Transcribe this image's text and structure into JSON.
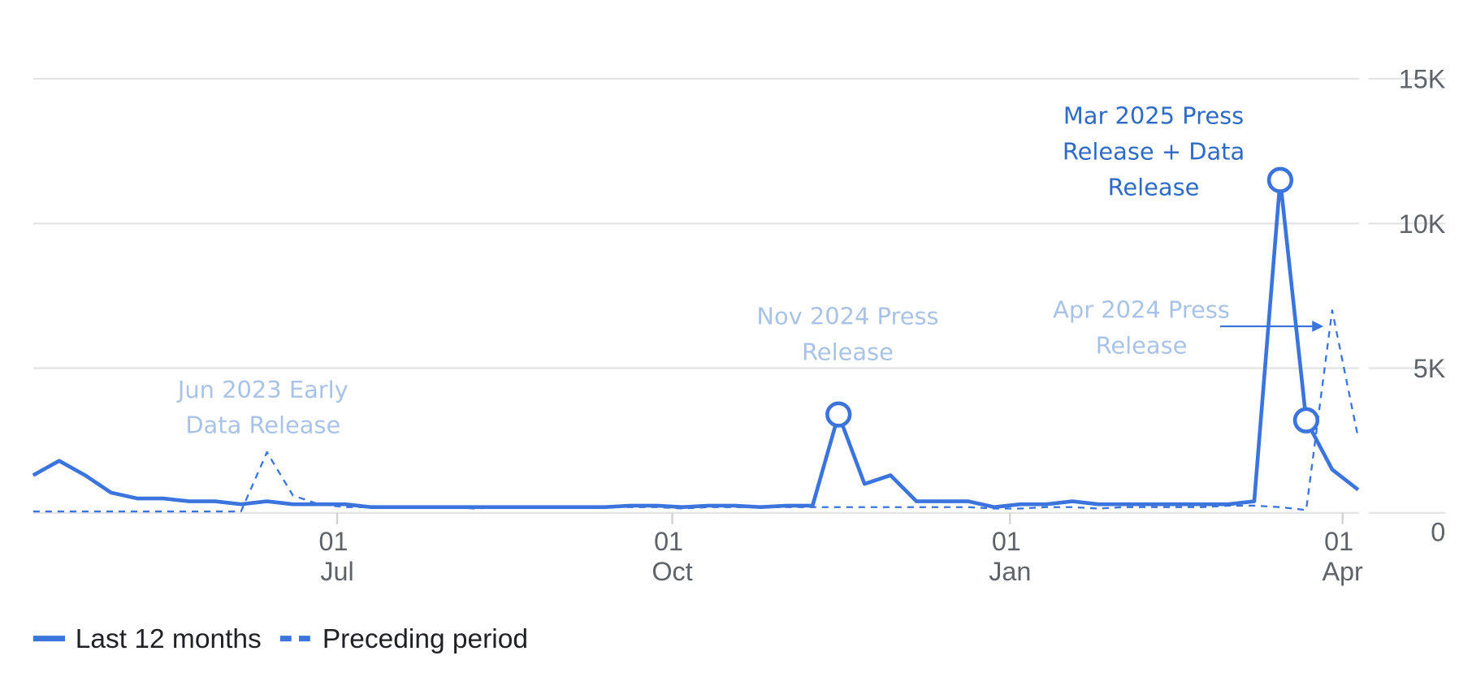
{
  "chart_data": {
    "type": "line",
    "x": [
      0,
      1,
      2,
      3,
      4,
      5,
      6,
      7,
      8,
      9,
      10,
      11,
      12,
      13,
      14,
      15,
      16,
      17,
      18,
      19,
      20,
      21,
      22,
      23,
      24,
      25,
      26,
      27,
      28,
      29,
      30,
      31,
      32,
      33,
      34,
      35,
      36,
      37,
      38,
      39,
      40,
      41,
      42,
      43,
      44,
      45,
      46,
      47,
      48,
      49,
      50,
      51
    ],
    "xlim": [
      0,
      51
    ],
    "xticks": [
      {
        "value": 11.7,
        "label": "01 Jul"
      },
      {
        "value": 24.6,
        "label": "01 Oct"
      },
      {
        "value": 37.6,
        "label": "01 Jan"
      },
      {
        "value": 50.4,
        "label": "01 Apr"
      }
    ],
    "ylim": [
      0,
      15000
    ],
    "yticks": [
      0,
      {
        "value": 5000,
        "label": "5K"
      },
      {
        "value": 10000,
        "label": "10K"
      },
      {
        "value": 15000,
        "label": "15K"
      }
    ],
    "grid": true,
    "series": [
      {
        "name": "Last 12 months",
        "color": "#3b74dc",
        "dash": false,
        "values": [
          1300,
          1800,
          1300,
          700,
          500,
          500,
          400,
          400,
          300,
          400,
          300,
          300,
          300,
          200,
          200,
          200,
          200,
          200,
          200,
          200,
          200,
          200,
          200,
          250,
          250,
          200,
          250,
          250,
          200,
          250,
          250,
          3400,
          1000,
          1300,
          400,
          400,
          400,
          200,
          300,
          300,
          400,
          300,
          300,
          300,
          300,
          300,
          300,
          400,
          11500,
          3200,
          1500,
          800
        ]
      },
      {
        "name": "Preceding period",
        "color": "#3b74dc",
        "dash": true,
        "values": [
          50,
          50,
          50,
          50,
          50,
          50,
          50,
          50,
          50,
          2100,
          600,
          300,
          200,
          200,
          200,
          200,
          200,
          150,
          200,
          200,
          200,
          200,
          200,
          200,
          200,
          150,
          200,
          200,
          200,
          200,
          200,
          200,
          200,
          200,
          200,
          200,
          200,
          150,
          150,
          200,
          200,
          150,
          200,
          200,
          200,
          200,
          250,
          250,
          200,
          100,
          7000,
          2600
        ]
      }
    ],
    "annotations": [
      {
        "text": "Jun 2023 Early Data Release"
      },
      {
        "text": "Nov 2024 Press Release"
      },
      {
        "text": "Apr 2024 Press Release"
      },
      {
        "text": "Mar 2025 Press Release + Data Release"
      }
    ]
  }
}
